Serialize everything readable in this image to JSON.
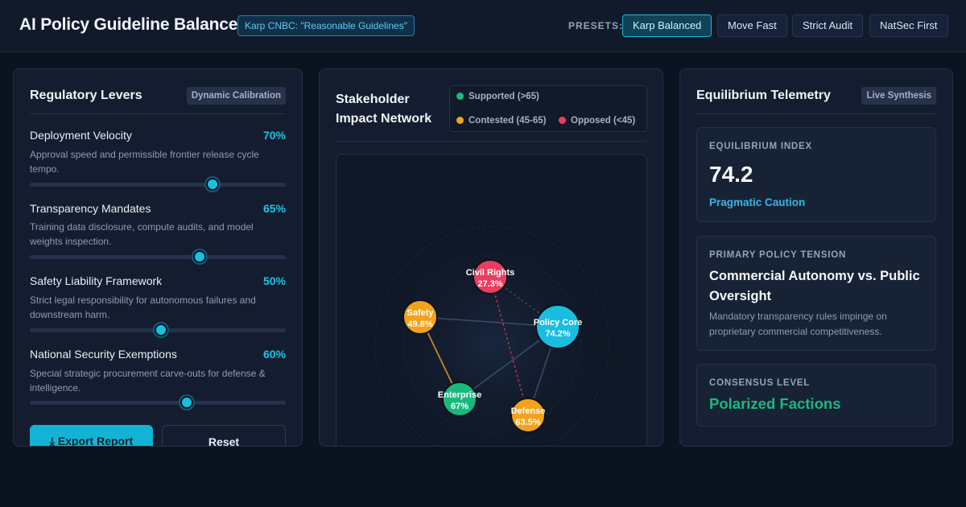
{
  "header": {
    "title": "AI Policy Guideline Balancer",
    "source_badge": "Karp CNBC: \"Reasonable Guidelines\"",
    "presets_label": "PRESETS:",
    "presets": [
      {
        "label": "Karp Balanced",
        "active": true
      },
      {
        "label": "Move Fast",
        "active": false
      },
      {
        "label": "Strict Audit",
        "active": false
      },
      {
        "label": "NatSec First",
        "active": false
      }
    ]
  },
  "levers_panel": {
    "title": "Regulatory Levers",
    "tag": "Dynamic Calibration",
    "levers": [
      {
        "name": "Deployment Velocity",
        "value_text": "70%",
        "value": 0.7,
        "description": "Approval speed and permissible frontier release cycle tempo."
      },
      {
        "name": "Transparency Mandates",
        "value_text": "65%",
        "value": 0.65,
        "description": "Training data disclosure, compute audits, and model weights inspection."
      },
      {
        "name": "Safety Liability Framework",
        "value_text": "50%",
        "value": 0.5,
        "description": "Strict legal responsibility for autonomous failures and downstream harm."
      },
      {
        "name": "National Security Exemptions",
        "value_text": "60%",
        "value": 0.6,
        "description": "Special strategic procurement carve-outs for defense & intelligence."
      }
    ],
    "export_label": "Export Report",
    "reset_label": "Reset"
  },
  "network_panel": {
    "title": "Stakeholder Impact Network",
    "legend": {
      "supported": "Supported (>65)",
      "contested": "Contested (45-65)",
      "opposed": "Opposed (<45)"
    },
    "colors": {
      "supported": "#19b97e",
      "contested": "#f4a21b",
      "opposed": "#ec3d5e",
      "core": "#19bde0"
    },
    "nodes": [
      {
        "id": "core",
        "name": "Policy Core",
        "score": 74.2,
        "score_text": "74.2%",
        "status": "core"
      },
      {
        "id": "civil",
        "name": "Civil Rights",
        "score": 27.3,
        "score_text": "27.3%",
        "status": "opposed"
      },
      {
        "id": "safety",
        "name": "Safety",
        "score": 49.8,
        "score_text": "49.8%",
        "status": "contested"
      },
      {
        "id": "enterprise",
        "name": "Enterprise",
        "score": 67,
        "score_text": "67%",
        "status": "supported"
      },
      {
        "id": "defense",
        "name": "Defense",
        "score": 63.5,
        "score_text": "63.5%",
        "status": "contested"
      }
    ],
    "links": [
      {
        "from": "safety",
        "to": "core",
        "kind": "neutral"
      },
      {
        "from": "enterprise",
        "to": "core",
        "kind": "neutral"
      },
      {
        "from": "defense",
        "to": "core",
        "kind": "neutral"
      },
      {
        "from": "civil",
        "to": "core",
        "kind": "dashed-neutral"
      },
      {
        "from": "civil",
        "to": "defense",
        "kind": "conflict"
      },
      {
        "from": "safety",
        "to": "enterprise",
        "kind": "tension"
      }
    ]
  },
  "telemetry_panel": {
    "title": "Equilibrium Telemetry",
    "tag": "Live Synthesis",
    "equilibrium_label": "EQUILIBRIUM INDEX",
    "equilibrium_value": "74.2",
    "equilibrium_state": "Pragmatic Caution",
    "tension_label": "PRIMARY POLICY TENSION",
    "tension_title": "Commercial Autonomy vs. Public Oversight",
    "tension_desc": "Mandatory transparency rules impinge on proprietary commercial competitiveness.",
    "consensus_label": "CONSENSUS LEVEL",
    "consensus_value": "Polarized Factions"
  }
}
